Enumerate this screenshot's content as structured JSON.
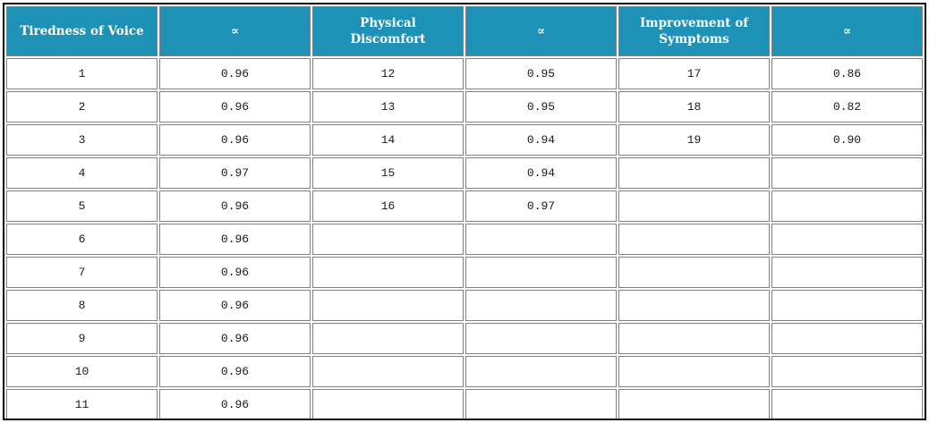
{
  "chart_data": {
    "type": "table",
    "columns": [
      "Tiredness of Voice",
      "∝",
      "Physical Discomfort",
      "∝",
      "Improvement of Symptoms",
      "∝"
    ],
    "rows": [
      [
        "1",
        "0.96",
        "12",
        "0.95",
        "17",
        "0.86"
      ],
      [
        "2",
        "0.96",
        "13",
        "0.95",
        "18",
        "0.82"
      ],
      [
        "3",
        "0.96",
        "14",
        "0.94",
        "19",
        "0.90"
      ],
      [
        "4",
        "0.97",
        "15",
        "0.94",
        "",
        ""
      ],
      [
        "5",
        "0.96",
        "16",
        "0.97",
        "",
        ""
      ],
      [
        "6",
        "0.96",
        "",
        "",
        "",
        ""
      ],
      [
        "7",
        "0.96",
        "",
        "",
        "",
        ""
      ],
      [
        "8",
        "0.96",
        "",
        "",
        "",
        ""
      ],
      [
        "9",
        "0.96",
        "",
        "",
        "",
        ""
      ],
      [
        "10",
        "0.96",
        "",
        "",
        "",
        ""
      ],
      [
        "11",
        "0.96",
        "",
        "",
        "",
        ""
      ]
    ],
    "layout": {
      "grid": true,
      "header_position": "top"
    }
  },
  "colors": {
    "header_bg": "#1E91B6",
    "header_text": "#FFFFFF",
    "cell_border": "#808080",
    "outer_border": "#000000",
    "cell_bg": "#FFFFFF",
    "cell_text": "#1A1A1A"
  }
}
